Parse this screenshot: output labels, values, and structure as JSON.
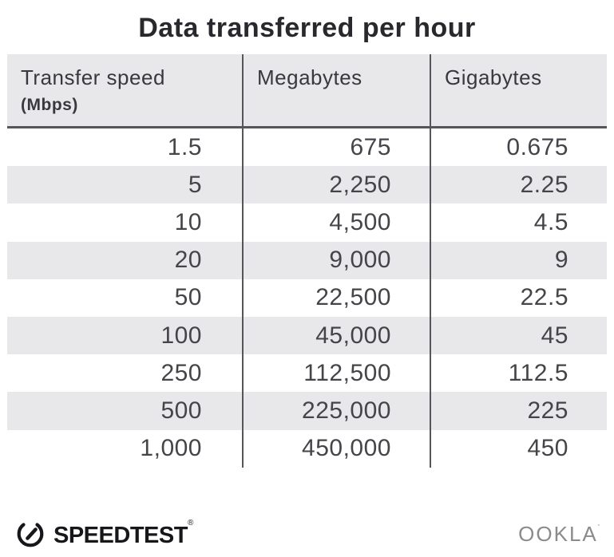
{
  "title": "Data transferred per hour",
  "table": {
    "columns": [
      {
        "label": "Transfer speed",
        "sublabel": "(Mbps)"
      },
      {
        "label": "Megabytes",
        "sublabel": ""
      },
      {
        "label": "Gigabytes",
        "sublabel": ""
      }
    ],
    "rows": [
      [
        "1.5",
        "675",
        "0.675"
      ],
      [
        "5",
        "2,250",
        "2.25"
      ],
      [
        "10",
        "4,500",
        "4.5"
      ],
      [
        "20",
        "9,000",
        "9"
      ],
      [
        "50",
        "22,500",
        "22.5"
      ],
      [
        "100",
        "45,000",
        "45"
      ],
      [
        "250",
        "112,500",
        "112.5"
      ],
      [
        "500",
        "225,000",
        "225"
      ],
      [
        "1,000",
        "450,000",
        "450"
      ]
    ]
  },
  "chart_data": {
    "type": "table",
    "title": "Data transferred per hour",
    "columns": [
      "Transfer speed (Mbps)",
      "Megabytes",
      "Gigabytes"
    ],
    "rows": [
      [
        1.5,
        675,
        0.675
      ],
      [
        5,
        2250,
        2.25
      ],
      [
        10,
        4500,
        4.5
      ],
      [
        20,
        9000,
        9
      ],
      [
        50,
        22500,
        22.5
      ],
      [
        100,
        45000,
        45
      ],
      [
        250,
        112500,
        112.5
      ],
      [
        500,
        225000,
        225
      ],
      [
        1000,
        450000,
        450
      ]
    ]
  },
  "footer": {
    "speedtest_label": "SPEEDTEST",
    "speedtest_mark": "®",
    "ookla_label": "OOKLA",
    "ookla_mark": "’"
  },
  "colors": {
    "header_bg": "#e8e7ea",
    "stripe_bg": "#e8e7ea",
    "divider": "#57555a",
    "title_text": "#29282d",
    "data_text": "#454449",
    "speedtest_logo": "#17161b",
    "ookla_logo": "#8b8a8d"
  }
}
